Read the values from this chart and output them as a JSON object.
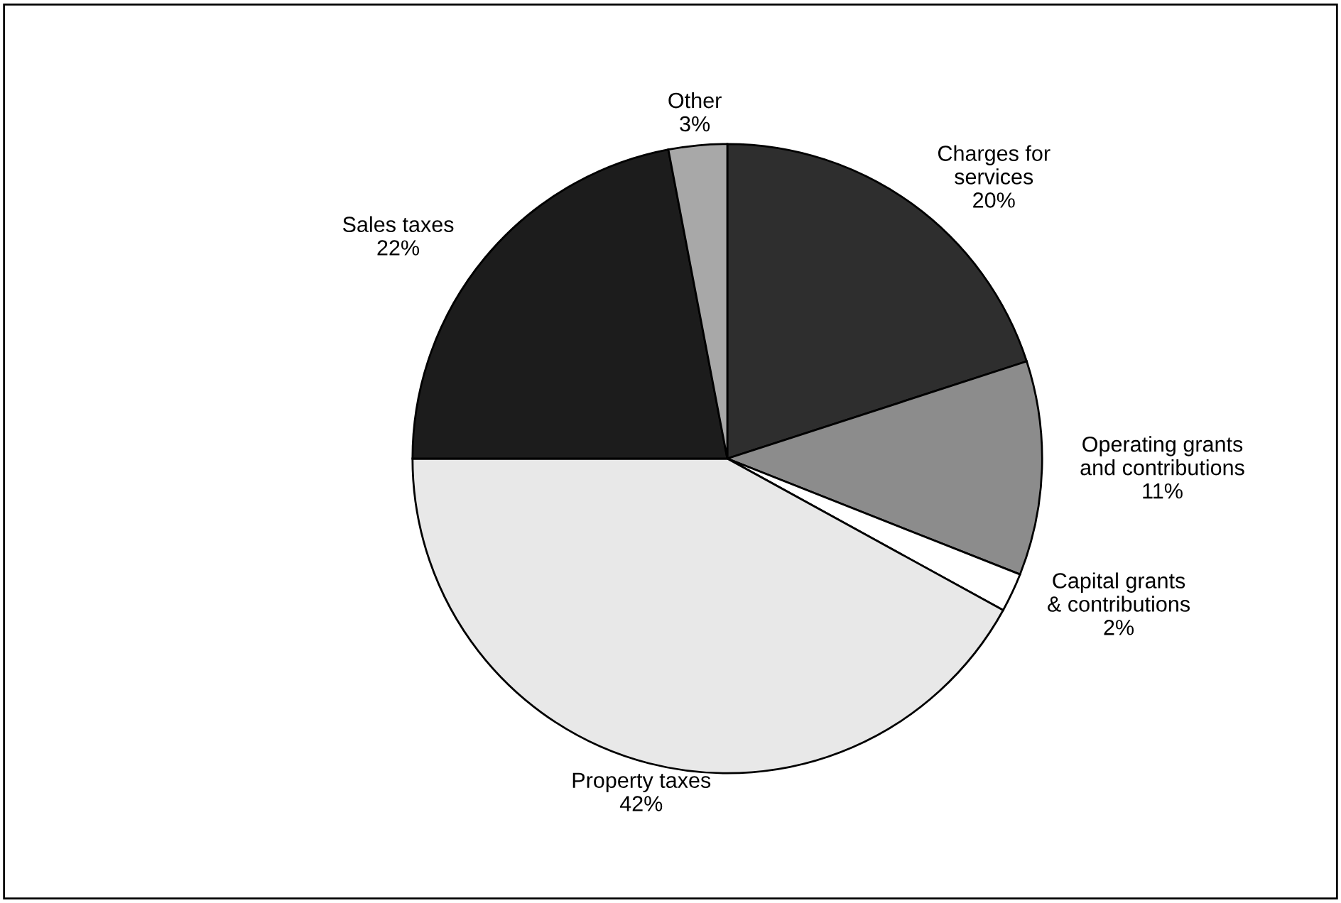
{
  "chart_data": {
    "type": "pie",
    "categories": [
      "Charges for\nservices",
      "Operating grants\nand contributions",
      "Capital grants\n& contributions",
      "Property taxes",
      "Sales taxes",
      "Other"
    ],
    "values": [
      20,
      11,
      2,
      42,
      22,
      3
    ],
    "value_labels": [
      "20%",
      "11%",
      "2%",
      "42%",
      "22%",
      "3%"
    ],
    "colors": [
      "#2e2e2e",
      "#8c8c8c",
      "#ffffff",
      "#e8e8e8",
      "#1c1c1c",
      "#a8a8a8"
    ],
    "legend": false
  }
}
